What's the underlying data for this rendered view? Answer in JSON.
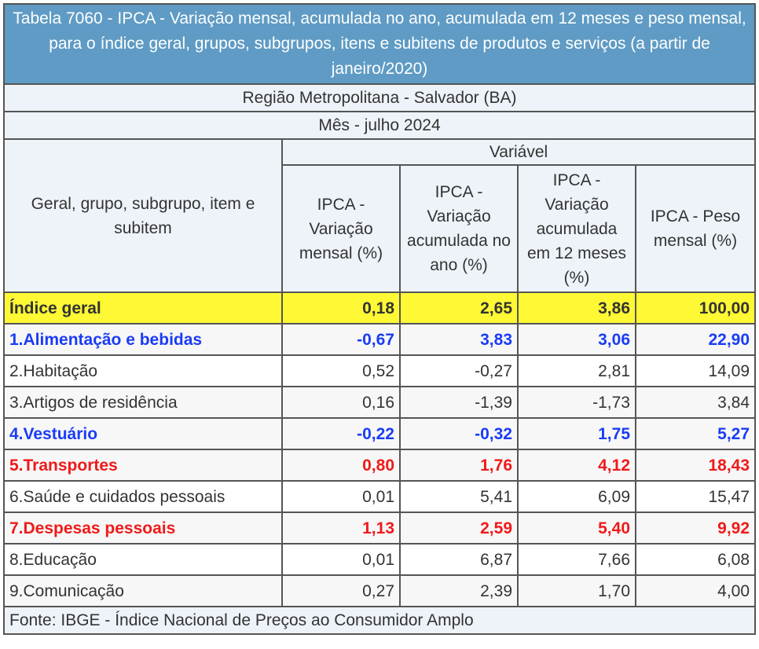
{
  "title": "Tabela 7060 - IPCA - Variação mensal, acumulada no ano, acumulada em 12 meses e peso mensal, para o índice geral, grupos, subgrupos, itens e subitens de produtos e serviços (a partir de janeiro/2020)",
  "region": "Região Metropolitana - Salvador (BA)",
  "month": "Mês - julho 2024",
  "variable_header": "Variável",
  "row_header": "Geral, grupo, subgrupo, item e subitem",
  "columns": [
    "IPCA - Variação mensal (%)",
    "IPCA - Variação acumulada no ano (%)",
    "IPCA - Variação acumulada em 12 meses (%)",
    "IPCA - Peso mensal (%)"
  ],
  "rows": [
    {
      "label": "Índice geral",
      "values": [
        "0,18",
        "2,65",
        "3,86",
        "100,00"
      ]
    },
    {
      "label": "1.Alimentação e bebidas",
      "values": [
        "-0,67",
        "3,83",
        "3,06",
        "22,90"
      ]
    },
    {
      "label": "2.Habitação",
      "values": [
        "0,52",
        "-0,27",
        "2,81",
        "14,09"
      ]
    },
    {
      "label": "3.Artigos de residência",
      "values": [
        "0,16",
        "-1,39",
        "-1,73",
        "3,84"
      ]
    },
    {
      "label": "4.Vestuário",
      "values": [
        "-0,22",
        "-0,32",
        "1,75",
        "5,27"
      ]
    },
    {
      "label": "5.Transportes",
      "values": [
        "0,80",
        "1,76",
        "4,12",
        "18,43"
      ]
    },
    {
      "label": "6.Saúde e cuidados pessoais",
      "values": [
        "0,01",
        "5,41",
        "6,09",
        "15,47"
      ]
    },
    {
      "label": "7.Despesas pessoais",
      "values": [
        "1,13",
        "2,59",
        "5,40",
        "9,92"
      ]
    },
    {
      "label": "8.Educação",
      "values": [
        "0,01",
        "6,87",
        "7,66",
        "6,08"
      ]
    },
    {
      "label": "9.Comunicação",
      "values": [
        "0,27",
        "2,39",
        "1,70",
        "4,00"
      ]
    }
  ],
  "footer": "Fonte: IBGE - Índice Nacional de Preços ao Consumidor Amplo",
  "colors": {
    "title_bg": "#5f9bc4",
    "highlight": "#fff835",
    "blue": "#1a3cf5",
    "red": "#f01a1a"
  }
}
